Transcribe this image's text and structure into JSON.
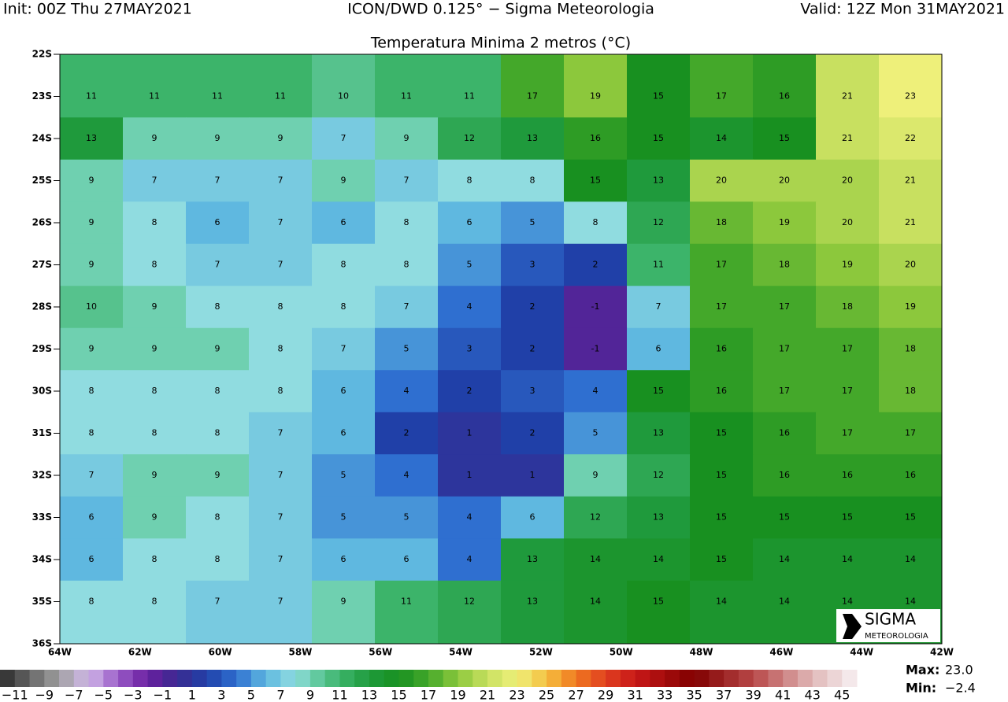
{
  "header": {
    "init": "Init: 00Z Thu 27MAY2021",
    "model": "ICON/DWD 0.125° − Sigma Meteorologia",
    "valid": "Valid: 12Z Mon 31MAY2021",
    "title": "Temperatura Minima 2 metros (°C)"
  },
  "map": {
    "lat_labels": [
      "22S",
      "23S",
      "24S",
      "25S",
      "26S",
      "27S",
      "28S",
      "29S",
      "30S",
      "31S",
      "32S",
      "33S",
      "34S",
      "35S",
      "36S"
    ],
    "lon_labels": [
      "64W",
      "62W",
      "60W",
      "58W",
      "56W",
      "54W",
      "52W",
      "50W",
      "48W",
      "46W",
      "44W",
      "42W"
    ],
    "grid": [
      [
        11,
        11,
        11,
        11,
        10,
        11,
        11,
        17,
        19,
        15,
        17,
        16,
        21,
        23
      ],
      [
        13,
        9,
        9,
        9,
        7,
        9,
        12,
        13,
        16,
        15,
        14,
        15,
        21,
        22
      ],
      [
        9,
        7,
        7,
        7,
        9,
        7,
        8,
        8,
        15,
        13,
        20,
        20,
        20,
        21
      ],
      [
        9,
        8,
        6,
        7,
        6,
        8,
        6,
        5,
        8,
        12,
        18,
        19,
        20,
        21
      ],
      [
        9,
        8,
        7,
        7,
        8,
        8,
        5,
        3,
        2,
        11,
        17,
        18,
        19,
        20
      ],
      [
        10,
        9,
        8,
        8,
        8,
        7,
        4,
        2,
        -1,
        7,
        17,
        17,
        18,
        19
      ],
      [
        9,
        9,
        9,
        8,
        7,
        5,
        3,
        2,
        -1,
        6,
        16,
        17,
        17,
        18
      ],
      [
        8,
        8,
        8,
        8,
        6,
        4,
        2,
        3,
        4,
        15,
        16,
        17,
        17,
        18
      ],
      [
        8,
        8,
        8,
        7,
        6,
        2,
        1,
        2,
        5,
        13,
        15,
        16,
        17,
        17
      ],
      [
        7,
        9,
        9,
        7,
        5,
        4,
        1,
        1,
        9,
        12,
        15,
        16,
        16,
        16
      ],
      [
        6,
        9,
        8,
        7,
        5,
        5,
        4,
        6,
        12,
        13,
        15,
        15,
        15,
        15
      ],
      [
        6,
        8,
        8,
        7,
        6,
        6,
        4,
        13,
        14,
        14,
        15,
        14,
        14,
        14
      ],
      [
        8,
        8,
        7,
        7,
        9,
        11,
        12,
        13,
        14,
        15,
        14,
        14,
        14,
        14
      ]
    ]
  },
  "colorbar": {
    "ticks": [
      {
        "value": -11,
        "label": "−11"
      },
      {
        "value": -9,
        "label": "−9"
      },
      {
        "value": -7,
        "label": "−7"
      },
      {
        "value": -5,
        "label": "−5"
      },
      {
        "value": -3,
        "label": "−3"
      },
      {
        "value": -1,
        "label": "−1"
      },
      1,
      3,
      5,
      7,
      9,
      11,
      13,
      15,
      17,
      19,
      21,
      23,
      25,
      27,
      29,
      31,
      33,
      35,
      37,
      39,
      41,
      43,
      45
    ],
    "stops": [
      [
        -12,
        "#2a2a2a"
      ],
      [
        -8,
        "#a0a0a0"
      ],
      [
        -6,
        "#d0b8e8"
      ],
      [
        -4,
        "#9a5cc8"
      ],
      [
        -2,
        "#6a1fa0"
      ],
      [
        0,
        "#3a2a90"
      ],
      [
        2,
        "#2040a8"
      ],
      [
        4,
        "#2f6fd0"
      ],
      [
        6,
        "#5fb8e0"
      ],
      [
        8,
        "#90dce0"
      ],
      [
        9,
        "#6fd0b0"
      ],
      [
        11,
        "#3cb46a"
      ],
      [
        13,
        "#1f9a3c"
      ],
      [
        15,
        "#189020"
      ],
      [
        17,
        "#44a82a"
      ],
      [
        19,
        "#8cc83c"
      ],
      [
        21,
        "#c8e060"
      ],
      [
        23,
        "#eef07a"
      ],
      [
        25,
        "#f5c040"
      ],
      [
        27,
        "#f07820"
      ],
      [
        29,
        "#e04020"
      ],
      [
        31,
        "#c81818"
      ],
      [
        35,
        "#800000"
      ],
      [
        39,
        "#b84848"
      ],
      [
        43,
        "#e0b8b8"
      ],
      [
        46,
        "#f8f2f4"
      ]
    ],
    "max_label": "Max:",
    "max": "23.0",
    "min_label": "Min:",
    "min": "−2.4"
  },
  "logo": {
    "name": "SIGMA",
    "sub": "METEOROLOGIA"
  }
}
